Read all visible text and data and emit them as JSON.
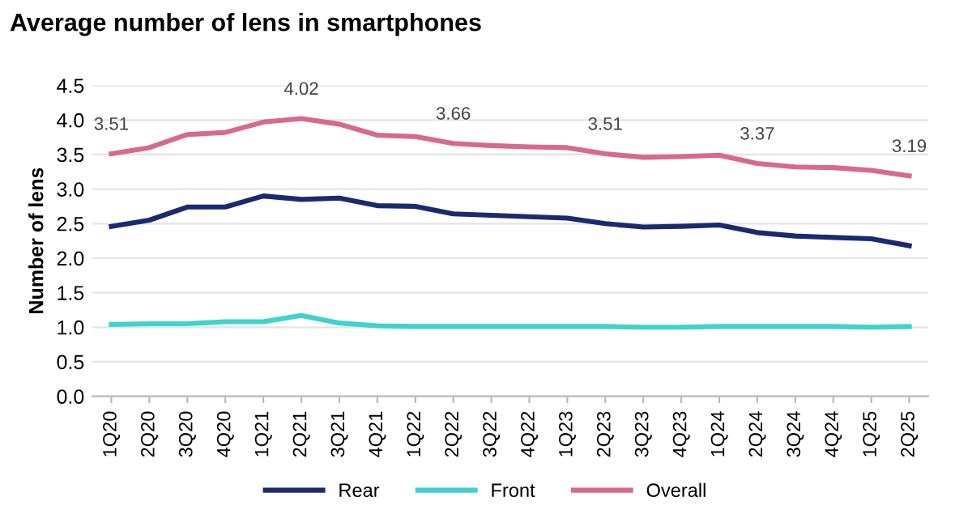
{
  "chart_data": {
    "type": "line",
    "title": "Average number of lens in smartphones",
    "ylabel": "Number of lens",
    "categories": [
      "1Q20",
      "2Q20",
      "3Q20",
      "4Q20",
      "1Q21",
      "2Q21",
      "3Q21",
      "4Q21",
      "1Q22",
      "2Q22",
      "3Q22",
      "4Q22",
      "1Q23",
      "2Q23",
      "3Q23",
      "4Q23",
      "1Q24",
      "2Q24",
      "3Q24",
      "4Q24",
      "1Q25",
      "2Q25"
    ],
    "series": [
      {
        "name": "Rear",
        "color": "#1b2a70",
        "values": [
          2.46,
          2.55,
          2.74,
          2.74,
          2.9,
          2.85,
          2.87,
          2.76,
          2.75,
          2.64,
          2.62,
          2.6,
          2.58,
          2.5,
          2.45,
          2.46,
          2.48,
          2.37,
          2.32,
          2.3,
          2.28,
          2.18
        ]
      },
      {
        "name": "Front",
        "color": "#3fd3cb",
        "values": [
          1.04,
          1.05,
          1.05,
          1.08,
          1.08,
          1.17,
          1.06,
          1.02,
          1.01,
          1.01,
          1.01,
          1.01,
          1.01,
          1.01,
          1.0,
          1.0,
          1.01,
          1.01,
          1.01,
          1.01,
          1.0,
          1.01
        ]
      },
      {
        "name": "Overall",
        "color": "#d9688f",
        "values": [
          3.51,
          3.6,
          3.79,
          3.82,
          3.97,
          4.02,
          3.94,
          3.78,
          3.76,
          3.66,
          3.63,
          3.61,
          3.6,
          3.51,
          3.46,
          3.47,
          3.49,
          3.37,
          3.32,
          3.31,
          3.27,
          3.19
        ],
        "value_labels": [
          "3.51",
          null,
          null,
          null,
          null,
          "4.02",
          null,
          null,
          null,
          "3.66",
          null,
          null,
          null,
          "3.51",
          null,
          null,
          null,
          "3.37",
          null,
          null,
          null,
          "3.19"
        ]
      }
    ],
    "ylim": [
      0,
      4.5
    ],
    "yticks": [
      "0.0",
      "0.5",
      "1.0",
      "1.5",
      "2.0",
      "2.5",
      "3.0",
      "3.5",
      "4.0",
      "4.5"
    ],
    "grid": "y",
    "legend": "bottom",
    "marker": "none",
    "line_style": "solid"
  }
}
